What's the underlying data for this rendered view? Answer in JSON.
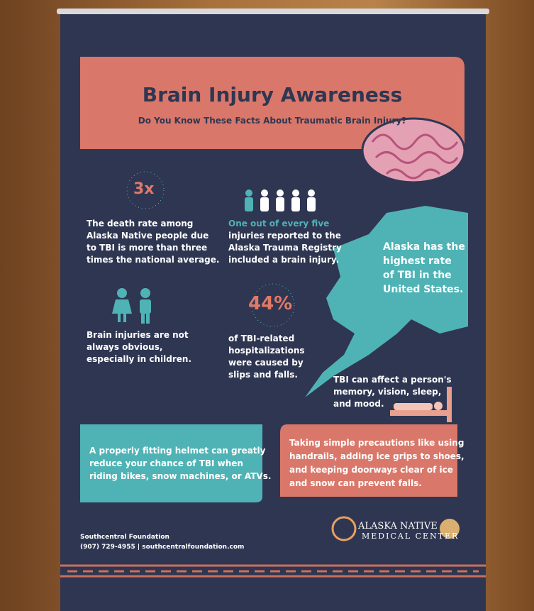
{
  "header": {
    "title": "Brain Injury Awareness",
    "subtitle": "Do You Know These Facts About Traumatic Brain Injury?"
  },
  "facts": [
    {
      "stat": "3x",
      "lines": [
        "The death rate among",
        "Alaska Native people due",
        "to TBI is more than three",
        "times the national average."
      ]
    },
    {
      "highlight": "One out of every five",
      "lines": [
        "injuries reported to the",
        "Alaska Trauma Registry",
        "included a brain injury."
      ]
    },
    {
      "lines": [
        "Alaska has the",
        "highest rate",
        "of TBI in the",
        "United States."
      ]
    },
    {
      "lines": [
        "Brain injuries are not",
        "always obvious,",
        "especially in children."
      ]
    },
    {
      "stat": "44%",
      "lines": [
        "of TBI-related",
        "hospitalizations",
        "were caused by",
        "slips and falls."
      ]
    },
    {
      "lines": [
        "TBI can affect a person's",
        "memory, vision, sleep,",
        "and mood."
      ]
    }
  ],
  "tips": [
    {
      "lines": [
        "A properly fitting helmet can greatly",
        "reduce your chance of TBI when",
        "riding bikes, snow machines, or ATVs."
      ]
    },
    {
      "lines": [
        "Taking simple precautions like using",
        "handrails, adding ice grips to shoes,",
        "and keeping doorways clear of ice",
        "and snow can prevent falls."
      ]
    }
  ],
  "footer": {
    "organization": "Southcentral Foundation",
    "contact": "(907) 729-4955 | southcentralfoundation.com",
    "logo": [
      "ALASKA NATIVE",
      "MEDICAL CENTER"
    ]
  }
}
